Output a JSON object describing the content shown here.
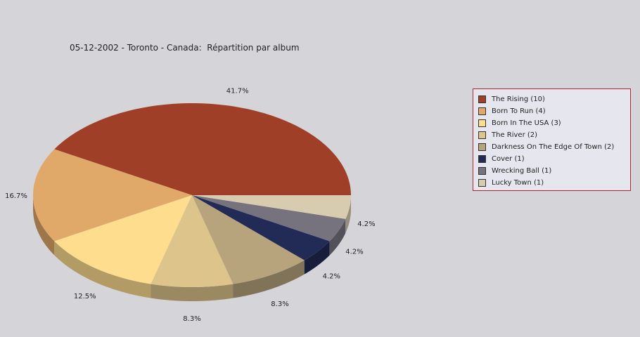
{
  "chart_data": {
    "type": "pie",
    "title": "05-12-2002 - Toronto - Canada:  Répartition par album",
    "slices": [
      {
        "label": "The Rising (10)",
        "value": 10,
        "percent_label": "41.7%",
        "color": "#a03f28"
      },
      {
        "label": "Born To Run (4)",
        "value": 4,
        "percent_label": "16.7%",
        "color": "#e0a96a"
      },
      {
        "label": "Born In The USA (3)",
        "value": 3,
        "percent_label": "12.5%",
        "color": "#fedd8f"
      },
      {
        "label": "The River (2)",
        "value": 2,
        "percent_label": "8.3%",
        "color": "#dcc48a"
      },
      {
        "label": "Darkness On The Edge Of Town (2)",
        "value": 2,
        "percent_label": "8.3%",
        "color": "#b8a47c"
      },
      {
        "label": "Cover (1)",
        "value": 1,
        "percent_label": "4.2%",
        "color": "#222a56"
      },
      {
        "label": "Wrecking Ball (1)",
        "value": 1,
        "percent_label": "4.2%",
        "color": "#76737f"
      },
      {
        "label": "Lucky Town (1)",
        "value": 1,
        "percent_label": "4.2%",
        "color": "#d8ccb0"
      }
    ],
    "legend_position": "right"
  }
}
